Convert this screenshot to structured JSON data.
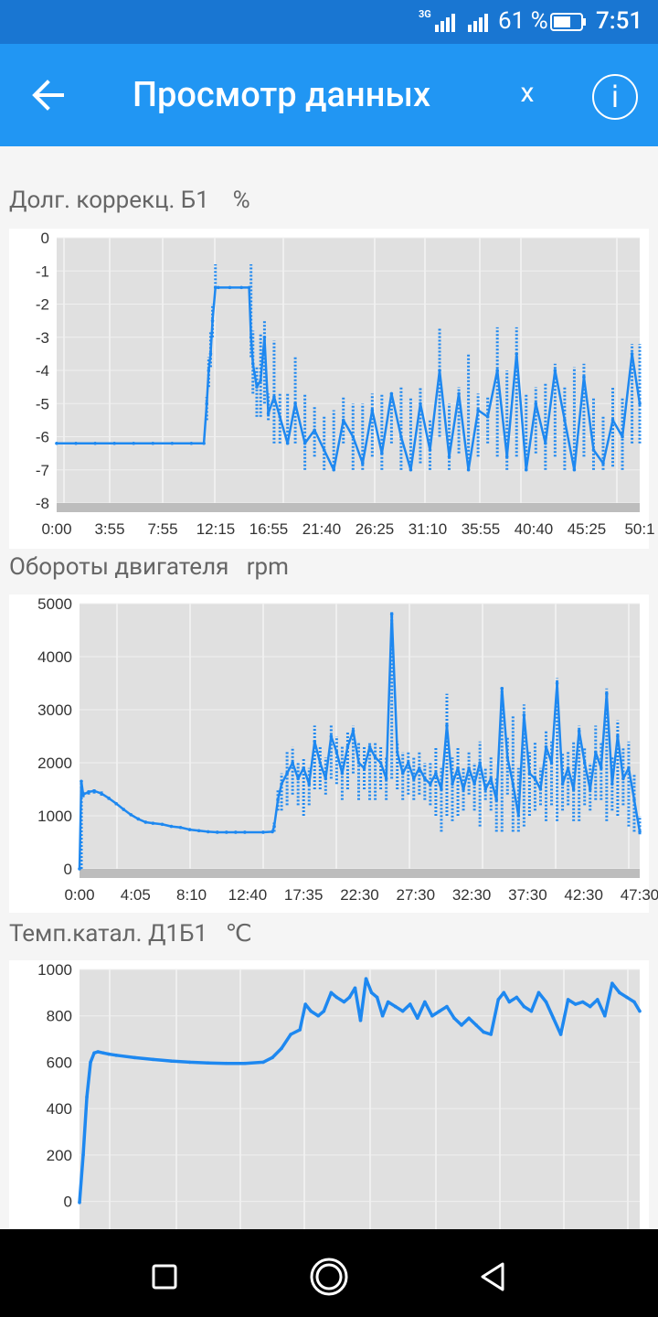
{
  "status_bar": {
    "network": "3G",
    "battery_percent": "61 %",
    "time": "7:51"
  },
  "app_bar": {
    "title": "Просмотр данных",
    "close_label": "x",
    "info_label": "i"
  },
  "colors": {
    "status_bar": "#1976d2",
    "app_bar": "#2196f3",
    "series": "#1e88f0",
    "plot_bg": "#e0e0e0"
  },
  "charts": [
    {
      "title": "Долг. коррекц. Б1",
      "unit": "%"
    },
    {
      "title": "Обороты двигателя",
      "unit": "rpm"
    },
    {
      "title": "Темп.катал. Д1Б1",
      "unit": "℃"
    }
  ],
  "chart_data": [
    {
      "type": "scatter",
      "title": "Долг. коррекц. Б1",
      "ylabel": "%",
      "ylim": [
        -8,
        0
      ],
      "xlim": [
        0,
        3030
      ],
      "yticks": [
        0,
        -1,
        -2,
        -3,
        -4,
        -5,
        -6,
        -7,
        -8
      ],
      "xtick_labels": [
        "0:00",
        "3:55",
        "7:55",
        "12:15",
        "16:55",
        "21:40",
        "26:25",
        "31:10",
        "35:55",
        "40:40",
        "45:25",
        "50:1"
      ],
      "series": [
        {
          "x": [
            0,
            100,
            200,
            300,
            400,
            500,
            600,
            700,
            765,
            780,
            790,
            800,
            810,
            825,
            840,
            900,
            960,
            1000,
            1010,
            1020,
            1040,
            1060,
            1080,
            1100,
            1130,
            1160,
            1200,
            1240,
            1290,
            1340,
            1390,
            1440,
            1490,
            1540,
            1590,
            1640,
            1690,
            1740,
            1790,
            1840,
            1890,
            1940,
            1990,
            2040,
            2090,
            2140,
            2190,
            2240,
            2290,
            2340,
            2390,
            2440,
            2490,
            2540,
            2590,
            2640,
            2690,
            2740,
            2790,
            2840,
            2890,
            2940,
            2990,
            3030
          ],
          "y": [
            -6.2,
            -6.2,
            -6.2,
            -6.2,
            -6.2,
            -6.2,
            -6.2,
            -6.2,
            -6.2,
            -5.0,
            -4.0,
            -3.5,
            -2.5,
            -1.5,
            -1.5,
            -1.5,
            -1.5,
            -1.5,
            -3.0,
            -3.8,
            -4.5,
            -4.3,
            -3.0,
            -5.3,
            -4.8,
            -5.4,
            -6.2,
            -5.0,
            -6.2,
            -5.8,
            -6.4,
            -7.0,
            -5.5,
            -6.0,
            -6.8,
            -5.2,
            -6.5,
            -4.7,
            -6.0,
            -7.0,
            -5.0,
            -6.4,
            -4.0,
            -6.6,
            -4.7,
            -7.0,
            -5.2,
            -5.4,
            -4.0,
            -6.6,
            -3.5,
            -7.0,
            -5.0,
            -6.2,
            -4.0,
            -5.5,
            -7.0,
            -4.2,
            -6.4,
            -6.8,
            -5.5,
            -6.0,
            -3.5,
            -5.0
          ],
          "range_low": [
            -6.2,
            -6.2,
            -6.2,
            -6.2,
            -6.2,
            -6.2,
            -6.2,
            -6.2,
            -6.2,
            -5.5,
            -4.5,
            -3.9,
            -3.0,
            -1.5,
            -1.5,
            -1.5,
            -1.5,
            -1.5,
            -3.6,
            -4.7,
            -5.4,
            -5.4,
            -5.0,
            -5.5,
            -6.2,
            -6.2,
            -6.2,
            -6.2,
            -7.0,
            -6.6,
            -7.0,
            -7.0,
            -6.2,
            -7.0,
            -7.0,
            -6.6,
            -7.0,
            -6.2,
            -7.0,
            -7.0,
            -6.8,
            -7.0,
            -6.0,
            -7.0,
            -6.5,
            -7.0,
            -6.6,
            -6.2,
            -6.6,
            -7.0,
            -6.6,
            -7.0,
            -6.5,
            -7.0,
            -6.6,
            -7.0,
            -7.0,
            -6.6,
            -7.0,
            -7.0,
            -6.9,
            -7.0,
            -6.2,
            -6.2
          ],
          "range_high": [
            -6.2,
            -6.2,
            -6.2,
            -6.2,
            -6.2,
            -6.2,
            -6.2,
            -6.2,
            -6.2,
            -4.8,
            -3.6,
            -2.8,
            -2.0,
            -0.8,
            -1.5,
            -1.5,
            -1.5,
            -1.5,
            -0.8,
            -2.8,
            -3.9,
            -2.9,
            -2.5,
            -4.7,
            -3.1,
            -4.7,
            -4.7,
            -3.6,
            -4.7,
            -5.1,
            -5.4,
            -5.2,
            -4.8,
            -5.0,
            -5.0,
            -4.7,
            -4.7,
            -4.7,
            -4.5,
            -4.8,
            -4.5,
            -5.5,
            -2.7,
            -5.0,
            -4.5,
            -3.5,
            -4.7,
            -4.8,
            -2.7,
            -4.0,
            -2.7,
            -4.7,
            -4.5,
            -4.4,
            -3.8,
            -4.5,
            -3.9,
            -3.8,
            -4.8,
            -5.4,
            -4.5,
            -4.8,
            -3.2,
            -3.2
          ]
        }
      ]
    },
    {
      "type": "scatter",
      "title": "Обороты двигателя",
      "ylabel": "rpm",
      "ylim": [
        0,
        5000
      ],
      "xlim": [
        0,
        3050
      ],
      "yticks": [
        0,
        1000,
        2000,
        3000,
        4000,
        5000
      ],
      "xtick_labels": [
        "0:00",
        "4:05",
        "8:10",
        "12:40",
        "17:35",
        "22:30",
        "27:30",
        "32:30",
        "37:30",
        "42:30",
        "47:30"
      ],
      "series": [
        {
          "x": [
            0,
            10,
            20,
            50,
            80,
            120,
            160,
            200,
            240,
            280,
            320,
            360,
            400,
            450,
            500,
            550,
            600,
            650,
            700,
            750,
            800,
            850,
            900,
            1000,
            1050,
            1060,
            1080,
            1100,
            1130,
            1160,
            1190,
            1220,
            1250,
            1280,
            1310,
            1340,
            1370,
            1400,
            1430,
            1460,
            1490,
            1520,
            1550,
            1580,
            1610,
            1640,
            1670,
            1700,
            1730,
            1760,
            1790,
            1820,
            1850,
            1880,
            1910,
            1940,
            1970,
            2000,
            2030,
            2060,
            2090,
            2120,
            2150,
            2180,
            2210,
            2240,
            2270,
            2300,
            2330,
            2360,
            2390,
            2420,
            2450,
            2480,
            2510,
            2540,
            2570,
            2600,
            2630,
            2660,
            2690,
            2720,
            2750,
            2780,
            2810,
            2840,
            2870,
            2900,
            2930,
            2960,
            2990,
            3020,
            3050
          ],
          "y": [
            0,
            1650,
            1400,
            1450,
            1470,
            1420,
            1330,
            1230,
            1120,
            1020,
            940,
            880,
            860,
            840,
            800,
            780,
            740,
            720,
            700,
            690,
            690,
            690,
            690,
            690,
            700,
            800,
            1300,
            1600,
            1800,
            2000,
            1700,
            1900,
            1600,
            2400,
            2000,
            1700,
            2500,
            2200,
            1800,
            2300,
            2600,
            2000,
            1900,
            2300,
            2100,
            2000,
            1700,
            4800,
            2200,
            1800,
            2000,
            1700,
            1900,
            1700,
            1600,
            1800,
            1500,
            2700,
            1600,
            1900,
            1500,
            1900,
            1600,
            2000,
            1500,
            1700,
            1300,
            3400,
            2100,
            1600,
            1000,
            2900,
            1800,
            1700,
            1500,
            2300,
            2000,
            3500,
            1600,
            1900,
            1500,
            2600,
            2000,
            1500,
            2200,
            1900,
            3300,
            1600,
            2500,
            1700,
            1900,
            1300,
            700
          ],
          "range_low": [
            0,
            0,
            1350,
            1400,
            1420,
            1380,
            1300,
            1200,
            1100,
            1000,
            920,
            860,
            840,
            820,
            790,
            770,
            730,
            710,
            690,
            680,
            680,
            680,
            680,
            680,
            690,
            700,
            1100,
            1100,
            1200,
            1400,
            1200,
            1000,
            1200,
            1500,
            1500,
            1400,
            1700,
            1600,
            1300,
            1500,
            1800,
            1300,
            1500,
            1300,
            1300,
            1500,
            1300,
            1700,
            1500,
            1300,
            1400,
            1300,
            1400,
            1300,
            1200,
            1000,
            700,
            1000,
            900,
            1000,
            1100,
            1400,
            1100,
            800,
            1300,
            1100,
            700,
            700,
            1400,
            700,
            700,
            800,
            1000,
            1100,
            1200,
            900,
            1200,
            900,
            1100,
            1200,
            900,
            900,
            1200,
            1100,
            1300,
            1300,
            900,
            1100,
            1000,
            1200,
            800,
            700,
            650
          ],
          "range_high": [
            0,
            1650,
            1450,
            1480,
            1500,
            1460,
            1360,
            1260,
            1150,
            1050,
            960,
            900,
            880,
            860,
            820,
            800,
            760,
            740,
            720,
            700,
            700,
            700,
            700,
            700,
            710,
            900,
            1500,
            1800,
            2200,
            2300,
            2000,
            2100,
            1900,
            2700,
            2300,
            2100,
            2700,
            2500,
            2300,
            2600,
            2700,
            2400,
            2300,
            2400,
            2400,
            2300,
            2100,
            4850,
            2400,
            2200,
            2200,
            2100,
            2200,
            2000,
            2000,
            2300,
            1900,
            3300,
            2100,
            2300,
            1900,
            2200,
            2000,
            2400,
            1900,
            2100,
            1700,
            3450,
            2500,
            2900,
            1900,
            3100,
            2200,
            2400,
            1900,
            2600,
            2400,
            3600,
            2200,
            2200,
            2400,
            2700,
            2300,
            2000,
            2700,
            2400,
            3400,
            2100,
            2800,
            2300,
            2400,
            1800,
            1000
          ]
        }
      ]
    },
    {
      "type": "line",
      "title": "Темп.катал. Д1Б1",
      "ylabel": "℃",
      "ylim": [
        -120,
        1000
      ],
      "xlim": [
        0,
        3050
      ],
      "yticks": [
        0,
        200,
        400,
        600,
        800,
        1000
      ],
      "series": [
        {
          "x": [
            0,
            20,
            40,
            60,
            80,
            100,
            130,
            160,
            200,
            300,
            400,
            500,
            600,
            700,
            800,
            900,
            1000,
            1050,
            1100,
            1150,
            1200,
            1230,
            1260,
            1300,
            1330,
            1370,
            1400,
            1440,
            1470,
            1500,
            1530,
            1560,
            1590,
            1620,
            1650,
            1680,
            1720,
            1760,
            1800,
            1840,
            1880,
            1920,
            1960,
            2000,
            2040,
            2080,
            2120,
            2160,
            2200,
            2240,
            2280,
            2310,
            2340,
            2380,
            2420,
            2460,
            2500,
            2540,
            2580,
            2620,
            2660,
            2700,
            2740,
            2780,
            2820,
            2860,
            2900,
            2940,
            2980,
            3020,
            3050
          ],
          "y": [
            -5,
            200,
            450,
            600,
            640,
            645,
            640,
            635,
            630,
            620,
            612,
            605,
            600,
            597,
            595,
            595,
            600,
            620,
            660,
            720,
            740,
            850,
            820,
            800,
            820,
            900,
            880,
            860,
            880,
            920,
            780,
            960,
            900,
            880,
            800,
            860,
            840,
            820,
            850,
            790,
            860,
            800,
            820,
            840,
            790,
            760,
            790,
            760,
            730,
            720,
            870,
            900,
            860,
            880,
            840,
            820,
            900,
            860,
            790,
            720,
            870,
            850,
            860,
            840,
            870,
            800,
            940,
            900,
            880,
            860,
            820
          ]
        }
      ]
    }
  ]
}
